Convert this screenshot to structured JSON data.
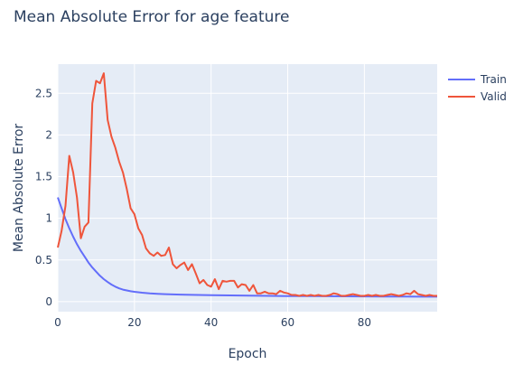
{
  "chart_data": {
    "type": "line",
    "title": "Mean Absolute Error for age feature",
    "xlabel": "Epoch",
    "ylabel": "Mean Absolute Error",
    "xlim": [
      0,
      99
    ],
    "ylim": [
      -0.12,
      2.85
    ],
    "xticks": [
      0,
      20,
      40,
      60,
      80
    ],
    "yticks": [
      0,
      0.5,
      1,
      1.5,
      2,
      2.5
    ],
    "ytick_labels": [
      "0",
      "0.5",
      "1",
      "1.5",
      "2",
      "2.5"
    ],
    "grid": true,
    "legend_position": "top-right",
    "series": [
      {
        "name": "Train",
        "color": "#636efa",
        "x": [
          0,
          1,
          2,
          3,
          4,
          5,
          6,
          7,
          8,
          9,
          10,
          11,
          12,
          13,
          14,
          15,
          16,
          17,
          18,
          19,
          20,
          22,
          24,
          26,
          28,
          30,
          32,
          35,
          40,
          45,
          50,
          55,
          60,
          65,
          70,
          75,
          80,
          85,
          90,
          95,
          99
        ],
        "y": [
          1.25,
          1.12,
          0.99,
          0.88,
          0.78,
          0.69,
          0.61,
          0.54,
          0.47,
          0.41,
          0.36,
          0.31,
          0.27,
          0.235,
          0.205,
          0.18,
          0.16,
          0.145,
          0.135,
          0.125,
          0.118,
          0.108,
          0.1,
          0.095,
          0.09,
          0.087,
          0.085,
          0.082,
          0.078,
          0.075,
          0.072,
          0.07,
          0.068,
          0.066,
          0.065,
          0.064,
          0.063,
          0.062,
          0.061,
          0.06,
          0.06
        ]
      },
      {
        "name": "Valid",
        "color": "#ef553b",
        "x": [
          0,
          1,
          2,
          3,
          4,
          5,
          6,
          7,
          8,
          9,
          10,
          11,
          12,
          13,
          14,
          15,
          16,
          17,
          18,
          19,
          20,
          21,
          22,
          23,
          24,
          25,
          26,
          27,
          28,
          29,
          30,
          31,
          32,
          33,
          34,
          35,
          36,
          37,
          38,
          39,
          40,
          41,
          42,
          43,
          44,
          45,
          46,
          47,
          48,
          49,
          50,
          51,
          52,
          53,
          54,
          55,
          56,
          57,
          58,
          59,
          60,
          61,
          62,
          63,
          64,
          65,
          66,
          67,
          68,
          69,
          70,
          71,
          72,
          73,
          74,
          75,
          76,
          77,
          78,
          79,
          80,
          81,
          82,
          83,
          84,
          85,
          86,
          87,
          88,
          89,
          90,
          91,
          92,
          93,
          94,
          95,
          96,
          97,
          98,
          99
        ],
        "y": [
          0.65,
          0.85,
          1.15,
          1.75,
          1.55,
          1.25,
          0.76,
          0.9,
          0.95,
          2.38,
          2.65,
          2.62,
          2.74,
          2.18,
          1.98,
          1.85,
          1.68,
          1.55,
          1.35,
          1.12,
          1.05,
          0.88,
          0.8,
          0.64,
          0.58,
          0.55,
          0.59,
          0.55,
          0.56,
          0.65,
          0.45,
          0.4,
          0.44,
          0.47,
          0.38,
          0.45,
          0.34,
          0.22,
          0.26,
          0.2,
          0.18,
          0.27,
          0.15,
          0.25,
          0.24,
          0.25,
          0.25,
          0.17,
          0.21,
          0.2,
          0.13,
          0.2,
          0.1,
          0.1,
          0.12,
          0.1,
          0.1,
          0.09,
          0.13,
          0.11,
          0.1,
          0.08,
          0.08,
          0.07,
          0.08,
          0.07,
          0.08,
          0.07,
          0.08,
          0.07,
          0.07,
          0.08,
          0.1,
          0.09,
          0.07,
          0.07,
          0.08,
          0.09,
          0.08,
          0.07,
          0.07,
          0.08,
          0.07,
          0.08,
          0.07,
          0.07,
          0.08,
          0.09,
          0.08,
          0.07,
          0.08,
          0.1,
          0.09,
          0.13,
          0.09,
          0.08,
          0.07,
          0.08,
          0.07,
          0.07
        ]
      }
    ]
  }
}
